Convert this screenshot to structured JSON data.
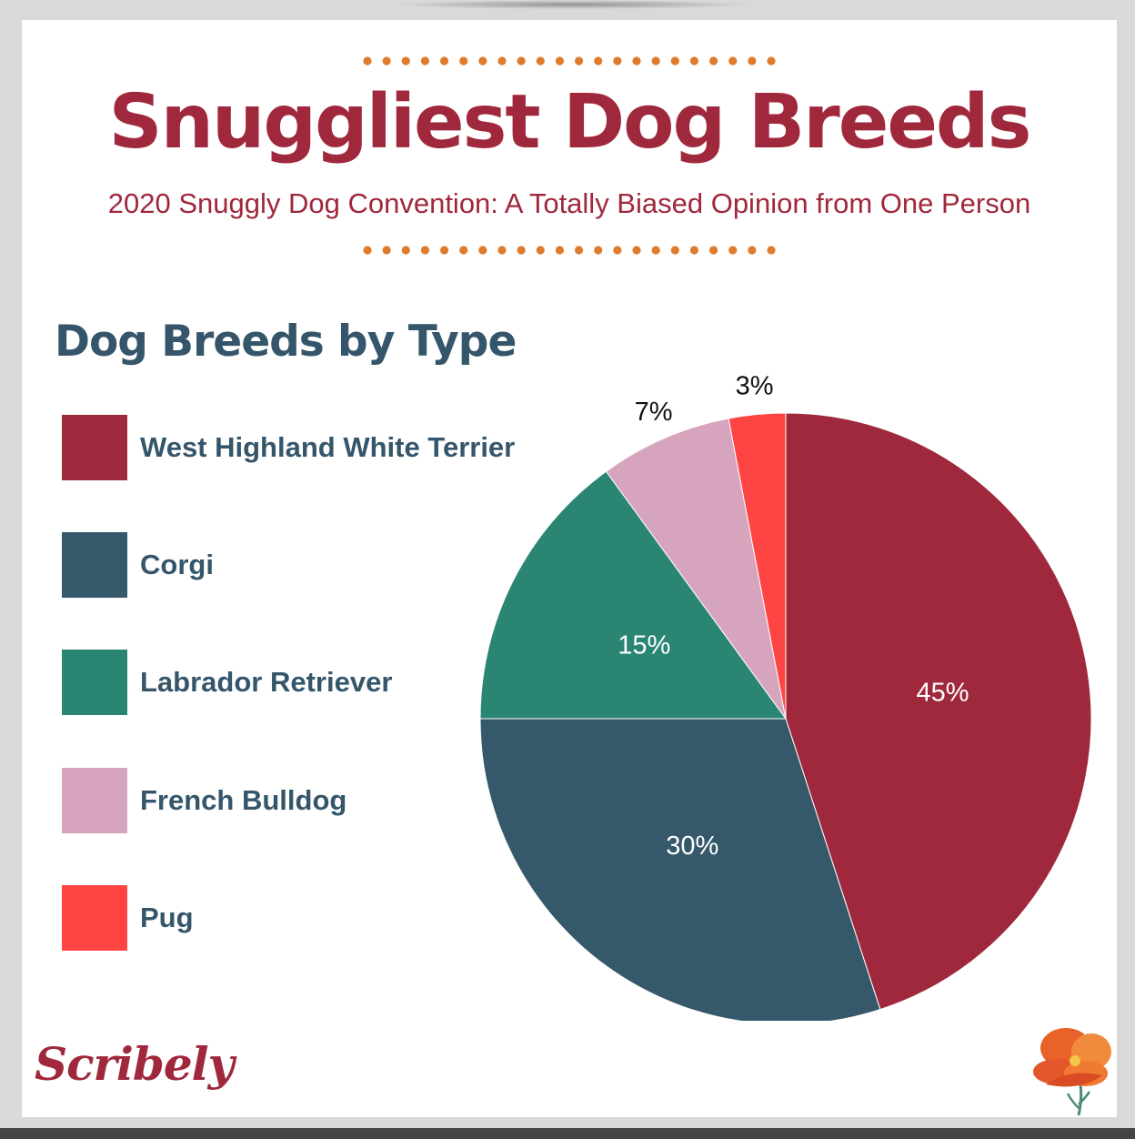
{
  "header": {
    "title": "Snuggliest Dog Breeds",
    "subtitle": "2020 Snuggly Dog Convention: A Totally Biased Opinion from One Person"
  },
  "colors": {
    "accent": "#a0283c",
    "heading": "#35566a",
    "dots": "#e07b2c"
  },
  "chart_data": {
    "type": "pie",
    "title": "Dog Breeds by Type",
    "categories": [
      "West Highland White Terrier",
      "Corgi",
      "Labrador Retriever",
      "French Bulldog",
      "Pug"
    ],
    "values": [
      45,
      30,
      15,
      7,
      3
    ],
    "value_labels": [
      "45%",
      "30%",
      "15%",
      "7%",
      "3%"
    ],
    "colors": [
      "#a0283c",
      "#35596b",
      "#2b8573",
      "#d7a4bd",
      "#ff4444"
    ],
    "legend_position": "left"
  },
  "branding": {
    "logo_text": "Scribely",
    "flower_icon": "poppy-flower-icon"
  }
}
